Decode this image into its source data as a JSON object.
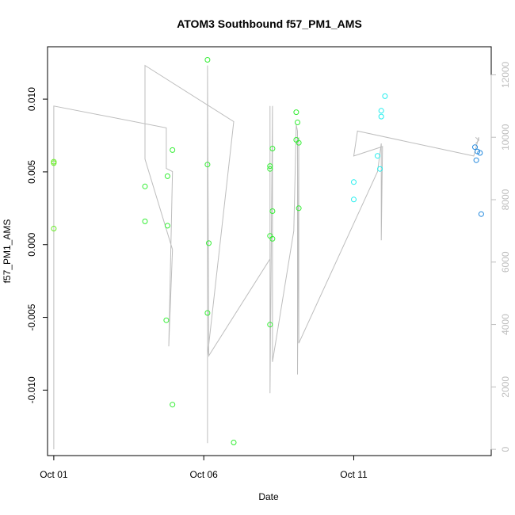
{
  "chart_data": {
    "type": "scatter",
    "title": "ATOM3 Southbound f57_PM1_AMS",
    "xlabel": "Date",
    "ylabel": "f57_PM1_AMS",
    "xlim": [
      "2016-09-30T19:00",
      "2016-10-15T14:00"
    ],
    "ylim": [
      -0.0145,
      0.0136
    ],
    "y2lim": [
      -200,
      12900
    ],
    "x_ticks": [
      "2016-10-01",
      "2016-10-06",
      "2016-10-11"
    ],
    "x_tick_labels": [
      "Oct 01",
      "Oct 06",
      "Oct 11"
    ],
    "y_ticks": [
      -0.01,
      -0.005,
      0.0,
      0.005,
      0.01
    ],
    "y_tick_labels": [
      "-0.010",
      "-0.005",
      "0.000",
      "0.005",
      "0.010"
    ],
    "y2_ticks": [
      0,
      2000,
      4000,
      6000,
      8000,
      10000,
      12000
    ],
    "y2_tick_labels": [
      "0",
      "2000",
      "4000",
      "6000",
      "8000",
      "10000",
      "12000"
    ],
    "grid": false,
    "colors": {
      "green": "#33ee33",
      "yellowgreen": "#66ee22",
      "cyan": "#22eeee",
      "blue": "#2288dd",
      "track": "#bdbdbd"
    },
    "points": [
      {
        "x": "2016-10-01T00:00",
        "y": 0.0057,
        "color": "yellowgreen"
      },
      {
        "x": "2016-10-01T00:00",
        "y": 0.0056,
        "color": "yellowgreen"
      },
      {
        "x": "2016-10-01T00:00",
        "y": 0.0011,
        "color": "yellowgreen"
      },
      {
        "x": "2016-10-04T01:00",
        "y": 0.004,
        "color": "green"
      },
      {
        "x": "2016-10-04T01:00",
        "y": 0.0016,
        "color": "green"
      },
      {
        "x": "2016-10-04T19:00",
        "y": 0.0047,
        "color": "green"
      },
      {
        "x": "2016-10-04T19:00",
        "y": 0.0013,
        "color": "green"
      },
      {
        "x": "2016-10-04T18:00",
        "y": -0.0052,
        "color": "green"
      },
      {
        "x": "2016-10-04T23:00",
        "y": 0.0065,
        "color": "green"
      },
      {
        "x": "2016-10-04T23:00",
        "y": -0.011,
        "color": "green"
      },
      {
        "x": "2016-10-06T03:00",
        "y": 0.0127,
        "color": "green"
      },
      {
        "x": "2016-10-06T03:00",
        "y": 0.0055,
        "color": "green"
      },
      {
        "x": "2016-10-06T04:00",
        "y": 0.0001,
        "color": "green"
      },
      {
        "x": "2016-10-06T03:00",
        "y": -0.0047,
        "color": "green"
      },
      {
        "x": "2016-10-07T00:00",
        "y": -0.0136,
        "color": "green"
      },
      {
        "x": "2016-10-08T05:00",
        "y": 0.0054,
        "color": "green"
      },
      {
        "x": "2016-10-08T05:00",
        "y": 0.0052,
        "color": "green"
      },
      {
        "x": "2016-10-08T07:00",
        "y": 0.0066,
        "color": "green"
      },
      {
        "x": "2016-10-08T07:00",
        "y": 0.0023,
        "color": "green"
      },
      {
        "x": "2016-10-08T05:00",
        "y": 0.0006,
        "color": "green"
      },
      {
        "x": "2016-10-08T07:00",
        "y": 0.0004,
        "color": "green"
      },
      {
        "x": "2016-10-08T05:00",
        "y": -0.0055,
        "color": "green"
      },
      {
        "x": "2016-10-09T02:00",
        "y": 0.0091,
        "color": "green"
      },
      {
        "x": "2016-10-09T03:00",
        "y": 0.0084,
        "color": "green"
      },
      {
        "x": "2016-10-09T02:00",
        "y": 0.0072,
        "color": "green"
      },
      {
        "x": "2016-10-09T04:00",
        "y": 0.007,
        "color": "green"
      },
      {
        "x": "2016-10-09T04:00",
        "y": 0.0025,
        "color": "green"
      },
      {
        "x": "2016-10-11T00:00",
        "y": 0.0043,
        "color": "cyan"
      },
      {
        "x": "2016-10-11T00:00",
        "y": 0.0031,
        "color": "cyan"
      },
      {
        "x": "2016-10-11T22:00",
        "y": 0.0092,
        "color": "cyan"
      },
      {
        "x": "2016-10-11T22:00",
        "y": 0.0088,
        "color": "cyan"
      },
      {
        "x": "2016-10-12T01:00",
        "y": 0.0102,
        "color": "cyan"
      },
      {
        "x": "2016-10-11T19:00",
        "y": 0.0061,
        "color": "cyan"
      },
      {
        "x": "2016-10-11T21:00",
        "y": 0.0052,
        "color": "cyan"
      },
      {
        "x": "2016-10-15T01:00",
        "y": 0.0067,
        "color": "blue"
      },
      {
        "x": "2016-10-15T03:00",
        "y": 0.0064,
        "color": "blue"
      },
      {
        "x": "2016-10-15T05:00",
        "y": 0.0063,
        "color": "blue"
      },
      {
        "x": "2016-10-15T02:00",
        "y": 0.0058,
        "color": "blue"
      },
      {
        "x": "2016-10-15T06:00",
        "y": 0.0021,
        "color": "blue"
      }
    ],
    "track": [
      {
        "x": "2016-10-01T00:00",
        "y2": 0
      },
      {
        "x": "2016-10-01T00:00",
        "y2": 11000
      },
      {
        "x": "2016-10-04T18:00",
        "y2": 10300
      },
      {
        "x": "2016-10-04T18:00",
        "y2": 9000
      },
      {
        "x": "2016-10-04T23:00",
        "y2": 8900
      },
      {
        "x": "2016-10-04T20:00",
        "y2": 3300
      },
      {
        "x": "2016-10-04T23:00",
        "y2": 6400
      },
      {
        "x": "2016-10-04T01:00",
        "y2": 9300
      },
      {
        "x": "2016-10-04T01:00",
        "y2": 12300
      },
      {
        "x": "2016-10-07T00:00",
        "y2": 10500
      },
      {
        "x": "2016-10-06T03:00",
        "y2": 3000
      },
      {
        "x": "2016-10-06T03:00",
        "y2": 200
      },
      {
        "x": "2016-10-06T03:00",
        "y2": 12300
      },
      {
        "x": "2016-10-06T04:00",
        "y2": 3000
      },
      {
        "x": "2016-10-08T05:00",
        "y2": 6100
      },
      {
        "x": "2016-10-08T05:00",
        "y2": 11000
      },
      {
        "x": "2016-10-08T05:00",
        "y2": 1800
      },
      {
        "x": "2016-10-08T07:00",
        "y2": 11000
      },
      {
        "x": "2016-10-08T07:00",
        "y2": 2800
      },
      {
        "x": "2016-10-09T00:00",
        "y2": 7000
      },
      {
        "x": "2016-10-09T02:00",
        "y2": 10400
      },
      {
        "x": "2016-10-09T03:00",
        "y2": 10200
      },
      {
        "x": "2016-10-09T03:00",
        "y2": 2400
      },
      {
        "x": "2016-10-09T04:00",
        "y2": 10000
      },
      {
        "x": "2016-10-09T04:00",
        "y2": 3400
      },
      {
        "x": "2016-10-11T19:00",
        "y2": 8900
      },
      {
        "x": "2016-10-11T22:00",
        "y2": 9800
      },
      {
        "x": "2016-10-11T22:00",
        "y2": 6700
      },
      {
        "x": "2016-10-11T23:00",
        "y2": 9700
      },
      {
        "x": "2016-10-11T00:00",
        "y2": 9400
      },
      {
        "x": "2016-10-11T03:00",
        "y2": 10200
      },
      {
        "x": "2016-10-15T00:00",
        "y2": 9400
      },
      {
        "x": "2016-10-15T04:00",
        "y2": 10000
      },
      {
        "x": "2016-10-15T04:00",
        "y2": 9900
      }
    ]
  }
}
